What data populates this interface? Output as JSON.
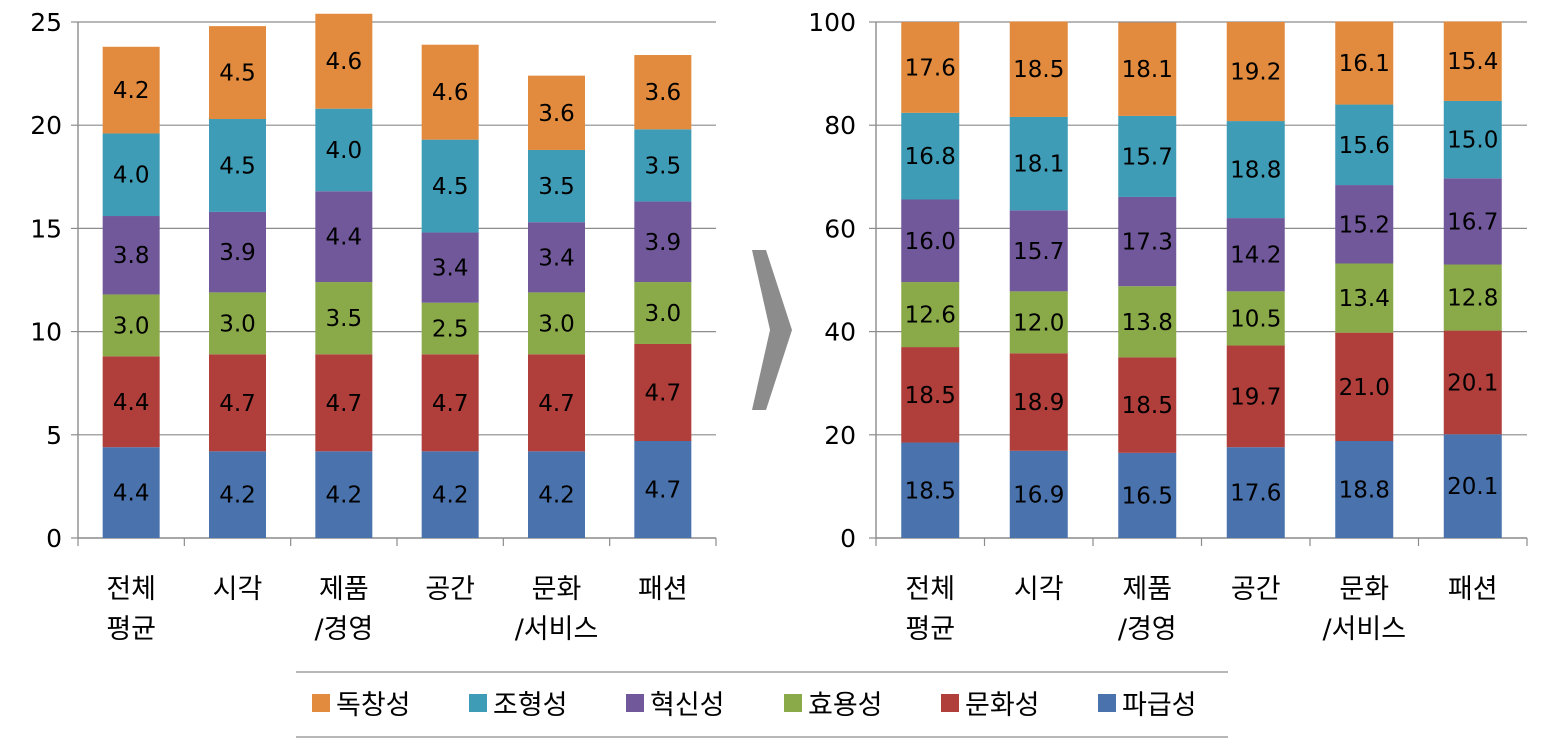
{
  "chart_data": [
    {
      "type": "bar",
      "stacked": true,
      "ylim": [
        0,
        25
      ],
      "yticks": [
        "0",
        "5",
        "10",
        "15",
        "20",
        "25"
      ],
      "grid": true,
      "categories": [
        [
          "전체",
          "평균"
        ],
        [
          "시각"
        ],
        [
          "제품",
          "/경영"
        ],
        [
          "공간"
        ],
        [
          "문화",
          "/서비스"
        ],
        [
          "패션"
        ]
      ],
      "series": [
        {
          "name": "파급성",
          "color": "#4a73ad",
          "values": [
            4.4,
            4.2,
            4.2,
            4.2,
            4.2,
            4.7
          ],
          "labels": [
            "4.4",
            "4.2",
            "4.2",
            "4.2",
            "4.2",
            "4.7"
          ]
        },
        {
          "name": "문화성",
          "color": "#b03e3b",
          "values": [
            4.4,
            4.7,
            4.7,
            4.7,
            4.7,
            4.7
          ],
          "labels": [
            "4.4",
            "4.7",
            "4.7",
            "4.7",
            "4.7",
            "4.7"
          ]
        },
        {
          "name": "효용성",
          "color": "#8aaa4a",
          "values": [
            3.0,
            3.0,
            3.5,
            2.5,
            3.0,
            3.0
          ],
          "labels": [
            "3.0",
            "3.0",
            "3.5",
            "2.5",
            "3.0",
            "3.0"
          ]
        },
        {
          "name": "혁신성",
          "color": "#71589a",
          "values": [
            3.8,
            3.9,
            4.4,
            3.4,
            3.4,
            3.9
          ],
          "labels": [
            "3.8",
            "3.9",
            "4.4",
            "3.4",
            "3.4",
            "3.9"
          ]
        },
        {
          "name": "조형성",
          "color": "#3f9cb6",
          "values": [
            4.0,
            4.5,
            4.0,
            4.5,
            3.5,
            3.5
          ],
          "labels": [
            "4.0",
            "4.5",
            "4.0",
            "4.5",
            "3.5",
            "3.5"
          ]
        },
        {
          "name": "독창성",
          "color": "#e28b3e",
          "values": [
            4.2,
            4.5,
            4.6,
            4.6,
            3.6,
            3.6
          ],
          "labels": [
            "4.2",
            "4.5",
            "4.6",
            "4.6",
            "3.6",
            "3.6"
          ]
        }
      ]
    },
    {
      "type": "bar",
      "stacked": true,
      "ylim": [
        0,
        100
      ],
      "yticks": [
        "0",
        "20",
        "40",
        "60",
        "80",
        "100"
      ],
      "grid": true,
      "categories": [
        [
          "전체",
          "평균"
        ],
        [
          "시각"
        ],
        [
          "제품",
          "/경영"
        ],
        [
          "공간"
        ],
        [
          "문화",
          "/서비스"
        ],
        [
          "패션"
        ]
      ],
      "series": [
        {
          "name": "파급성",
          "color": "#4a73ad",
          "values": [
            18.5,
            16.9,
            16.5,
            17.6,
            18.8,
            20.1
          ],
          "labels": [
            "18.5",
            "16.9",
            "16.5",
            "17.6",
            "18.8",
            "20.1"
          ]
        },
        {
          "name": "문화성",
          "color": "#b03e3b",
          "values": [
            18.5,
            18.9,
            18.5,
            19.7,
            21.0,
            20.1
          ],
          "labels": [
            "18.5",
            "18.9",
            "18.5",
            "19.7",
            "21.0",
            "20.1"
          ]
        },
        {
          "name": "효용성",
          "color": "#8aaa4a",
          "values": [
            12.6,
            12.0,
            13.8,
            10.5,
            13.4,
            12.8
          ],
          "labels": [
            "12.6",
            "12.0",
            "13.8",
            "10.5",
            "13.4",
            "12.8"
          ]
        },
        {
          "name": "혁신성",
          "color": "#71589a",
          "values": [
            16.0,
            15.7,
            17.3,
            14.2,
            15.2,
            16.7
          ],
          "labels": [
            "16.0",
            "15.7",
            "17.3",
            "14.2",
            "15.2",
            "16.7"
          ]
        },
        {
          "name": "조형성",
          "color": "#3f9cb6",
          "values": [
            16.8,
            18.1,
            15.7,
            18.8,
            15.6,
            15.0
          ],
          "labels": [
            "16.8",
            "18.1",
            "15.7",
            "18.8",
            "15.6",
            "15.0"
          ]
        },
        {
          "name": "독창성",
          "color": "#e28b3e",
          "values": [
            17.6,
            18.5,
            18.1,
            19.2,
            16.1,
            15.4
          ],
          "labels": [
            "17.6",
            "18.5",
            "18.1",
            "19.2",
            "16.1",
            "15.4"
          ]
        }
      ]
    }
  ],
  "legend": {
    "position": "bottom-center",
    "items": [
      {
        "label": "독창성",
        "color": "#e28b3e"
      },
      {
        "label": "조형성",
        "color": "#3f9cb6"
      },
      {
        "label": "혁신성",
        "color": "#71589a"
      },
      {
        "label": "효용성",
        "color": "#8aaa4a"
      },
      {
        "label": "문화성",
        "color": "#b03e3b"
      },
      {
        "label": "파급성",
        "color": "#4a73ad"
      }
    ]
  },
  "arrow": {
    "icon": "arrow-right-icon",
    "color": "#8c8c8c"
  }
}
